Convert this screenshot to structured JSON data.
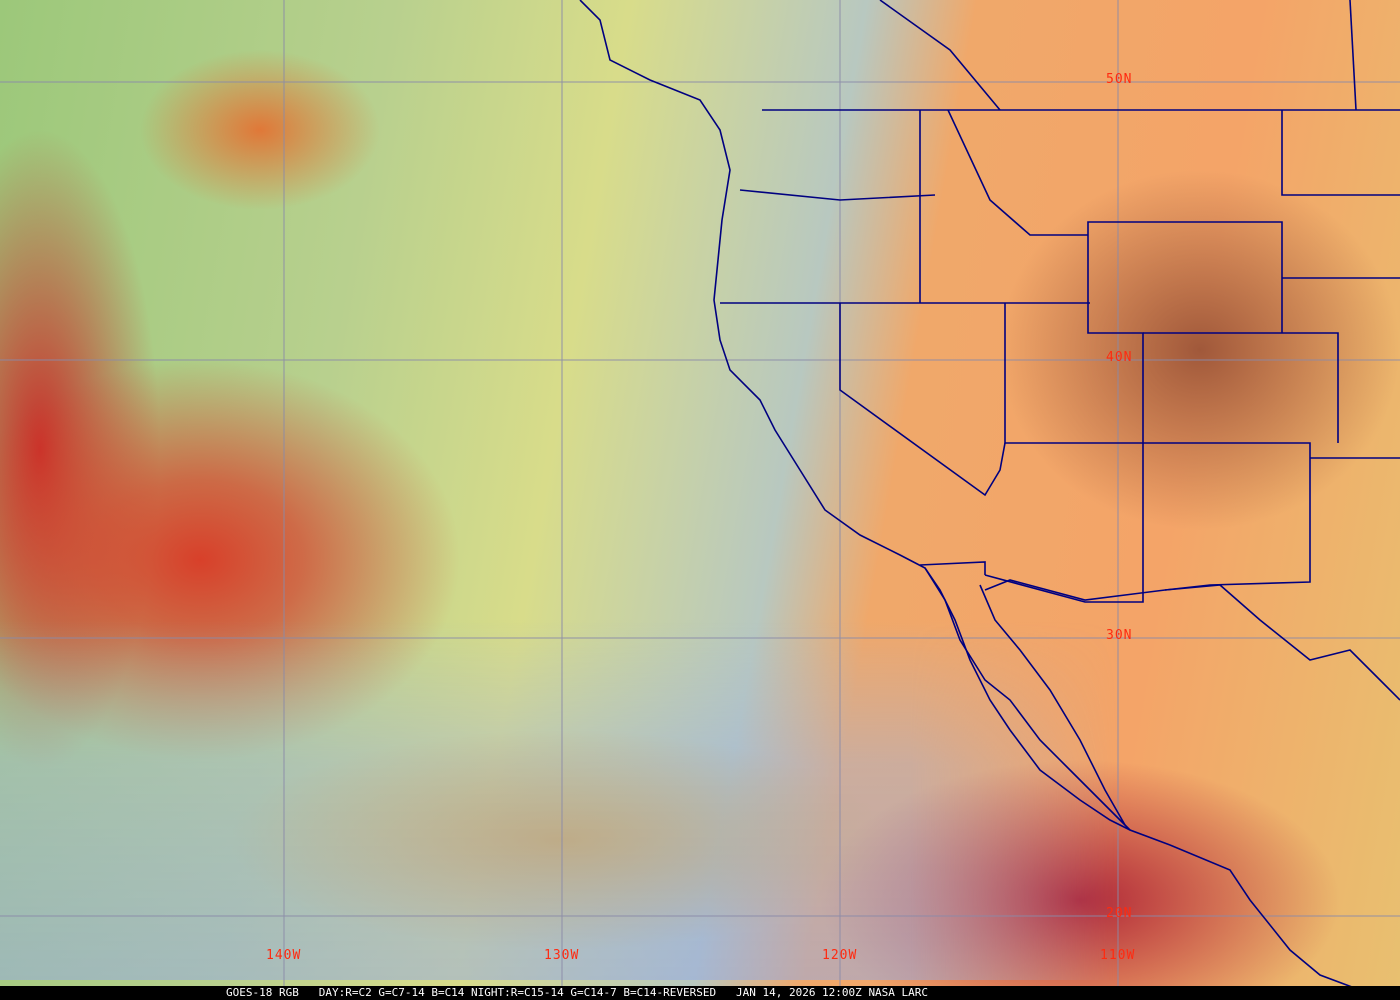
{
  "image": {
    "type": "satellite-rgb-composite",
    "region": "US West Coast / Eastern Pacific",
    "colors": {
      "coastline": "#000080",
      "grid": "#8080a0",
      "grid_labels": "#ff2a10",
      "caption_bg": "#000000",
      "caption_text": "#ffffff"
    }
  },
  "grid_labels": {
    "latitudes": [
      "50N",
      "40N",
      "30N",
      "20N"
    ],
    "longitudes": [
      "140W",
      "130W",
      "120W",
      "110W"
    ]
  },
  "caption": {
    "satellite": "GOES-18 RGB",
    "recipe": "DAY:R=C2 G=C7-14 B=C14 NIGHT:R=C15-14 G=C14-7 B=C14-REVERSED",
    "datetime": "JAN 14, 2026 12:00Z",
    "source": "NASA LARC"
  }
}
